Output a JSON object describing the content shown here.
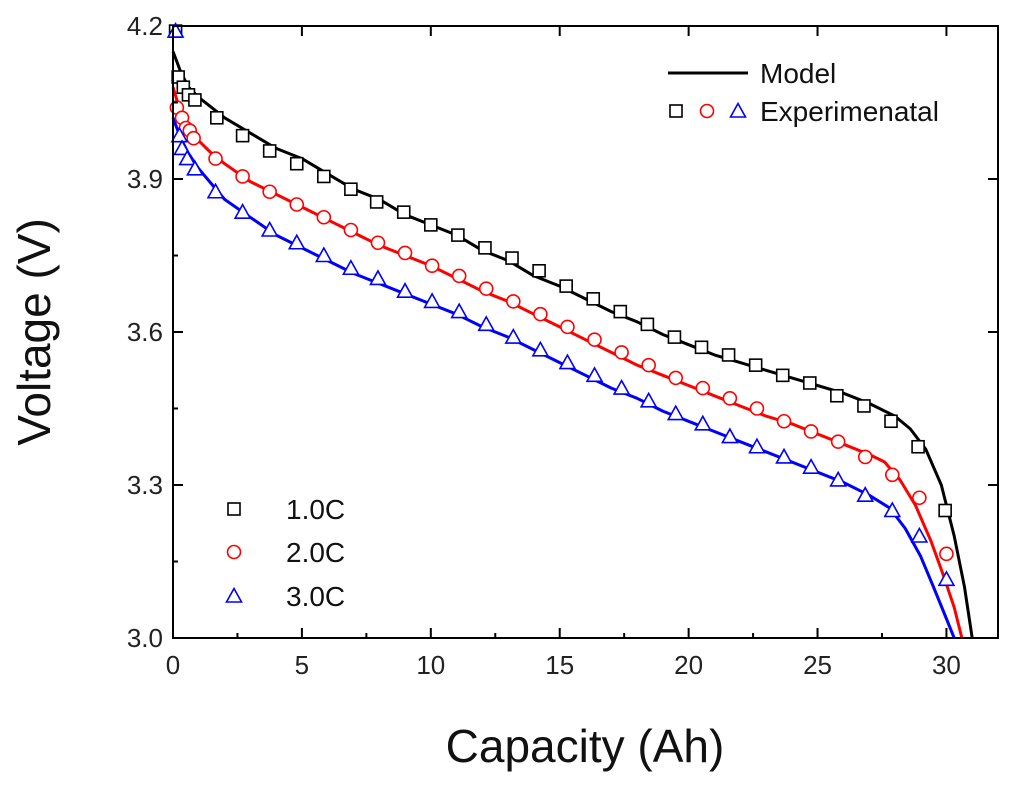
{
  "chart_data": {
    "type": "line",
    "title": "",
    "xlabel": "Capacity (Ah)",
    "ylabel": "Voltage (V)",
    "xlim": [
      0,
      32
    ],
    "ylim": [
      3.0,
      4.2
    ],
    "xticks": [
      0,
      5,
      10,
      15,
      20,
      25,
      30
    ],
    "yticks": [
      3.0,
      3.3,
      3.6,
      3.9,
      4.2
    ],
    "xtick_labels": [
      "0",
      "5",
      "10",
      "15",
      "20",
      "25",
      "30"
    ],
    "ytick_labels": [
      "3.0",
      "3.3",
      "3.6",
      "3.9",
      "4.2"
    ],
    "grid": false,
    "legend_top": {
      "position": "top-right",
      "model_label": "Model",
      "experimental_label": "Experimenatal"
    },
    "legend_bottom": {
      "position": "bottom-left",
      "entries": [
        "1.0C",
        "2.0C",
        "3.0C"
      ]
    },
    "series": [
      {
        "name": "1.0C",
        "color": "#000000",
        "marker": "square",
        "model": [
          [
            0,
            4.15
          ],
          [
            0.3,
            4.11
          ],
          [
            0.6,
            4.08
          ],
          [
            1.0,
            4.06
          ],
          [
            1.5,
            4.04
          ],
          [
            2,
            4.02
          ],
          [
            3,
            3.99
          ],
          [
            4,
            3.96
          ],
          [
            5,
            3.94
          ],
          [
            6,
            3.91
          ],
          [
            7,
            3.88
          ],
          [
            8,
            3.86
          ],
          [
            9,
            3.83
          ],
          [
            10,
            3.81
          ],
          [
            11,
            3.79
          ],
          [
            12,
            3.76
          ],
          [
            13,
            3.74
          ],
          [
            14,
            3.71
          ],
          [
            15,
            3.69
          ],
          [
            16,
            3.665
          ],
          [
            17,
            3.64
          ],
          [
            18,
            3.62
          ],
          [
            19,
            3.595
          ],
          [
            20,
            3.575
          ],
          [
            21,
            3.555
          ],
          [
            22,
            3.54
          ],
          [
            23,
            3.525
          ],
          [
            24,
            3.51
          ],
          [
            25,
            3.495
          ],
          [
            26,
            3.48
          ],
          [
            27,
            3.46
          ],
          [
            28,
            3.435
          ],
          [
            28.6,
            3.41
          ],
          [
            29.2,
            3.37
          ],
          [
            29.8,
            3.3
          ],
          [
            30.3,
            3.2
          ],
          [
            30.7,
            3.1
          ],
          [
            31.0,
            3.0
          ]
        ],
        "experimental": [
          [
            0.1,
            4.19
          ],
          [
            0.2,
            4.1
          ],
          [
            0.4,
            4.08
          ],
          [
            0.6,
            4.065
          ],
          [
            0.85,
            4.055
          ],
          [
            1.7,
            4.02
          ],
          [
            2.7,
            3.985
          ],
          [
            3.75,
            3.955
          ],
          [
            4.8,
            3.93
          ],
          [
            5.85,
            3.905
          ],
          [
            6.9,
            3.88
          ],
          [
            7.9,
            3.855
          ],
          [
            8.95,
            3.835
          ],
          [
            10.0,
            3.81
          ],
          [
            11.05,
            3.79
          ],
          [
            12.1,
            3.765
          ],
          [
            13.15,
            3.745
          ],
          [
            14.2,
            3.72
          ],
          [
            15.25,
            3.69
          ],
          [
            16.3,
            3.665
          ],
          [
            17.35,
            3.64
          ],
          [
            18.4,
            3.615
          ],
          [
            19.45,
            3.59
          ],
          [
            20.5,
            3.57
          ],
          [
            21.55,
            3.555
          ],
          [
            22.6,
            3.535
          ],
          [
            23.65,
            3.515
          ],
          [
            24.7,
            3.5
          ],
          [
            25.75,
            3.475
          ],
          [
            26.8,
            3.455
          ],
          [
            27.85,
            3.425
          ],
          [
            28.9,
            3.375
          ],
          [
            29.95,
            3.25
          ]
        ]
      },
      {
        "name": "2.0C",
        "color": "#ff0000",
        "marker": "circle",
        "model": [
          [
            0,
            4.08
          ],
          [
            0.3,
            4.03
          ],
          [
            0.6,
            4.0
          ],
          [
            1.0,
            3.975
          ],
          [
            1.5,
            3.95
          ],
          [
            2,
            3.93
          ],
          [
            3,
            3.895
          ],
          [
            4,
            3.87
          ],
          [
            5,
            3.845
          ],
          [
            6,
            3.82
          ],
          [
            7,
            3.795
          ],
          [
            8,
            3.77
          ],
          [
            9,
            3.75
          ],
          [
            10,
            3.73
          ],
          [
            11,
            3.705
          ],
          [
            12,
            3.68
          ],
          [
            13,
            3.66
          ],
          [
            14,
            3.635
          ],
          [
            15,
            3.61
          ],
          [
            16,
            3.585
          ],
          [
            17,
            3.56
          ],
          [
            18,
            3.535
          ],
          [
            19,
            3.515
          ],
          [
            20,
            3.495
          ],
          [
            21,
            3.475
          ],
          [
            22,
            3.455
          ],
          [
            23,
            3.435
          ],
          [
            24,
            3.42
          ],
          [
            25,
            3.4
          ],
          [
            26,
            3.38
          ],
          [
            27,
            3.36
          ],
          [
            27.6,
            3.345
          ],
          [
            28.2,
            3.31
          ],
          [
            28.8,
            3.26
          ],
          [
            29.4,
            3.19
          ],
          [
            29.9,
            3.12
          ],
          [
            30.3,
            3.06
          ],
          [
            30.6,
            3.0
          ]
        ],
        "experimental": [
          [
            0.15,
            4.04
          ],
          [
            0.35,
            4.02
          ],
          [
            0.5,
            4.0
          ],
          [
            0.65,
            3.995
          ],
          [
            0.8,
            3.98
          ],
          [
            1.65,
            3.94
          ],
          [
            2.7,
            3.905
          ],
          [
            3.75,
            3.875
          ],
          [
            4.8,
            3.85
          ],
          [
            5.85,
            3.825
          ],
          [
            6.9,
            3.8
          ],
          [
            7.95,
            3.775
          ],
          [
            9.0,
            3.755
          ],
          [
            10.05,
            3.73
          ],
          [
            11.1,
            3.71
          ],
          [
            12.15,
            3.685
          ],
          [
            13.2,
            3.66
          ],
          [
            14.25,
            3.635
          ],
          [
            15.3,
            3.61
          ],
          [
            16.35,
            3.585
          ],
          [
            17.4,
            3.56
          ],
          [
            18.45,
            3.535
          ],
          [
            19.5,
            3.51
          ],
          [
            20.55,
            3.49
          ],
          [
            21.6,
            3.47
          ],
          [
            22.65,
            3.45
          ],
          [
            23.7,
            3.425
          ],
          [
            24.75,
            3.405
          ],
          [
            25.8,
            3.385
          ],
          [
            26.85,
            3.355
          ],
          [
            27.9,
            3.32
          ],
          [
            28.95,
            3.275
          ],
          [
            30.0,
            3.165
          ]
        ]
      },
      {
        "name": "3.0C",
        "color": "#0000ff",
        "marker": "triangle",
        "model": [
          [
            0,
            4.02
          ],
          [
            0.3,
            3.98
          ],
          [
            0.6,
            3.95
          ],
          [
            1.0,
            3.92
          ],
          [
            1.5,
            3.89
          ],
          [
            2,
            3.86
          ],
          [
            3,
            3.825
          ],
          [
            4,
            3.79
          ],
          [
            5,
            3.765
          ],
          [
            6,
            3.74
          ],
          [
            7,
            3.715
          ],
          [
            8,
            3.695
          ],
          [
            9,
            3.675
          ],
          [
            10,
            3.655
          ],
          [
            11,
            3.635
          ],
          [
            12,
            3.61
          ],
          [
            13,
            3.59
          ],
          [
            14,
            3.565
          ],
          [
            15,
            3.54
          ],
          [
            16,
            3.515
          ],
          [
            17,
            3.49
          ],
          [
            18,
            3.47
          ],
          [
            19,
            3.445
          ],
          [
            20,
            3.425
          ],
          [
            21,
            3.405
          ],
          [
            22,
            3.385
          ],
          [
            23,
            3.365
          ],
          [
            24,
            3.345
          ],
          [
            25,
            3.325
          ],
          [
            26,
            3.305
          ],
          [
            27,
            3.28
          ],
          [
            27.8,
            3.255
          ],
          [
            28.4,
            3.215
          ],
          [
            29.0,
            3.16
          ],
          [
            29.5,
            3.1
          ],
          [
            29.9,
            3.05
          ],
          [
            30.3,
            3.0
          ]
        ],
        "experimental": [
          [
            0.1,
            4.19
          ],
          [
            0.25,
            3.985
          ],
          [
            0.35,
            3.96
          ],
          [
            0.55,
            3.94
          ],
          [
            0.85,
            3.92
          ],
          [
            1.65,
            3.875
          ],
          [
            2.7,
            3.835
          ],
          [
            3.75,
            3.8
          ],
          [
            4.8,
            3.775
          ],
          [
            5.85,
            3.75
          ],
          [
            6.9,
            3.725
          ],
          [
            7.95,
            3.705
          ],
          [
            9.0,
            3.68
          ],
          [
            10.05,
            3.66
          ],
          [
            11.1,
            3.64
          ],
          [
            12.15,
            3.615
          ],
          [
            13.2,
            3.59
          ],
          [
            14.25,
            3.565
          ],
          [
            15.3,
            3.54
          ],
          [
            16.35,
            3.515
          ],
          [
            17.4,
            3.49
          ],
          [
            18.45,
            3.465
          ],
          [
            19.5,
            3.44
          ],
          [
            20.55,
            3.42
          ],
          [
            21.6,
            3.395
          ],
          [
            22.65,
            3.375
          ],
          [
            23.7,
            3.355
          ],
          [
            24.75,
            3.335
          ],
          [
            25.8,
            3.31
          ],
          [
            26.85,
            3.28
          ],
          [
            27.9,
            3.25
          ],
          [
            28.95,
            3.2
          ],
          [
            30.0,
            3.115
          ]
        ]
      }
    ]
  }
}
